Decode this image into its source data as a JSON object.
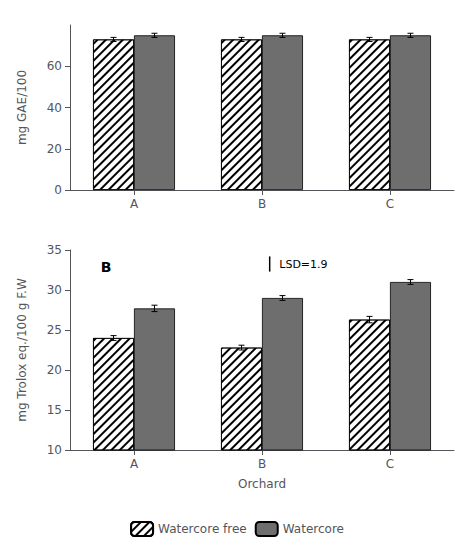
{
  "chart_data": [
    {
      "type": "bar",
      "ylabel": "mg GAE/100",
      "categories": [
        "A",
        "B",
        "C"
      ],
      "series": [
        {
          "name": "Watercore free",
          "color": "white",
          "values": [
            73,
            73,
            73
          ],
          "errors": [
            1.0,
            1.0,
            1.0
          ]
        },
        {
          "name": "Watercore",
          "color": "#6e6e6e",
          "values": [
            75,
            75,
            75
          ],
          "errors": [
            1.0,
            1.0,
            1.0
          ]
        }
      ],
      "ylim": [
        0,
        80
      ],
      "yticks": [
        0,
        20,
        40,
        60
      ],
      "grid": false
    },
    {
      "type": "bar",
      "ylabel": "mg Trolox eq./100 g F.W",
      "xlabel": "Orchard",
      "categories": [
        "A",
        "B",
        "C"
      ],
      "series": [
        {
          "name": "Watercore free",
          "color": "white",
          "values": [
            24.0,
            22.8,
            26.3
          ],
          "errors": [
            0.3,
            0.3,
            0.4
          ]
        },
        {
          "name": "Watercore",
          "color": "#6e6e6e",
          "values": [
            27.7,
            29.0,
            31.0
          ],
          "errors": [
            0.4,
            0.3,
            0.3
          ]
        }
      ],
      "ylim": [
        10,
        35
      ],
      "yticks": [
        10,
        15,
        20,
        25,
        30,
        35
      ],
      "panel_label": "B",
      "lsd": {
        "text": "LSD=1.9",
        "height": 1.9
      },
      "grid": false,
      "legend": "bottom"
    }
  ]
}
